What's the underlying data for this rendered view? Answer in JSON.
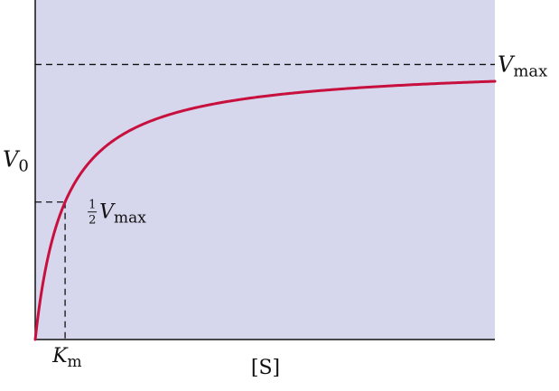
{
  "chart_data": {
    "type": "line",
    "title": "",
    "xlabel": "[S]",
    "ylabel": {
      "main": "V",
      "sub": "0"
    },
    "xlim": [
      0,
      1
    ],
    "ylim": [
      0,
      1
    ],
    "grid": false,
    "series": [
      {
        "equation": "V0 = Vmax*[S]/(Km+[S])",
        "Vmax": 0.81,
        "Km": 0.065,
        "x_start": 0.0
      }
    ],
    "reference_lines": {
      "vmax": {
        "value": 0.81,
        "label_main": "V",
        "label_sub": "max"
      },
      "half_vmax": {
        "value": 0.405,
        "label_frac_num": "1",
        "label_frac_den": "2",
        "label_main": "V",
        "label_sub": "max"
      },
      "km": {
        "value": 0.065,
        "label_main": "K",
        "label_sub": "m"
      }
    },
    "colors": {
      "plot_background": "#d6d6ec",
      "curve": "#c8103e",
      "dash": "#111111",
      "axis": "#111111"
    }
  }
}
